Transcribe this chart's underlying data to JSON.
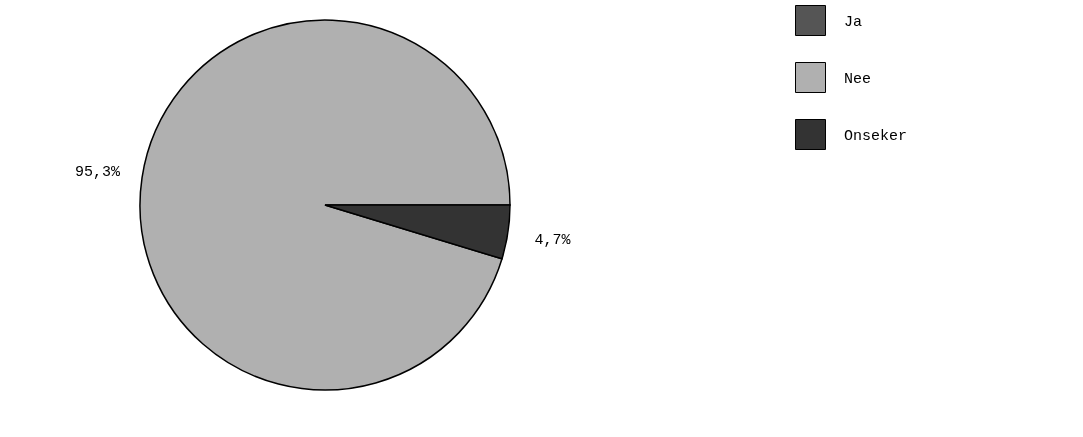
{
  "chart_data": {
    "type": "pie",
    "categories": [
      "Ja",
      "Nee",
      "Onseker"
    ],
    "values": [
      0,
      95.3,
      4.7
    ],
    "value_labels": [
      null,
      "95,3%",
      "4,7%"
    ],
    "colors": [
      "#555555",
      "#b0b0b0",
      "#333333"
    ],
    "legend": "right"
  }
}
